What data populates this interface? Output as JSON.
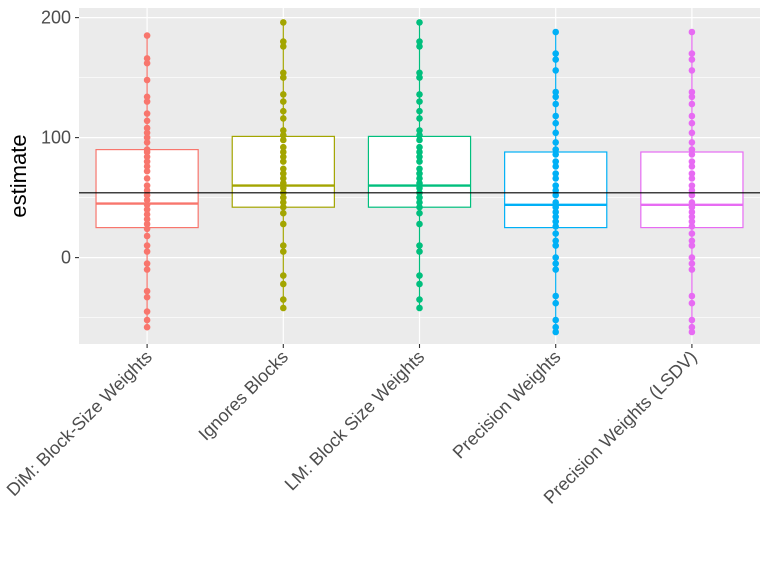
{
  "chart_data": {
    "type": "box",
    "title": "",
    "xlabel": "",
    "ylabel": "estimate",
    "ylim": [
      -72,
      208
    ],
    "y_ticks": [
      0,
      100,
      200
    ],
    "reference_line": 54,
    "grid": true,
    "legend": "none",
    "categories": [
      {
        "label": "DiM: Block-Size Weights",
        "color": "#F8766D",
        "box": {
          "q1": 25,
          "median": 45,
          "q3": 90,
          "min": -58,
          "max": 185
        },
        "points": [
          185,
          166,
          162,
          148,
          134,
          130,
          120,
          114,
          108,
          104,
          100,
          96,
          90,
          88,
          84,
          80,
          76,
          72,
          66,
          60,
          56,
          52,
          48,
          44,
          40,
          36,
          32,
          28,
          24,
          18,
          10,
          5,
          -5,
          -10,
          -28,
          -33,
          -45,
          -52,
          -58
        ]
      },
      {
        "label": "Ignores Blocks",
        "color": "#A3A500",
        "box": {
          "q1": 42,
          "median": 60,
          "q3": 101,
          "min": -42,
          "max": 196
        },
        "points": [
          196,
          180,
          176,
          154,
          150,
          136,
          130,
          122,
          116,
          106,
          102,
          98,
          92,
          88,
          84,
          80,
          74,
          70,
          66,
          62,
          58,
          54,
          50,
          46,
          42,
          37,
          28,
          10,
          5,
          -15,
          -22,
          -35,
          -42
        ]
      },
      {
        "label": "LM: Block Size Weights",
        "color": "#00BF7D",
        "box": {
          "q1": 42,
          "median": 60,
          "q3": 101,
          "min": -42,
          "max": 196
        },
        "points": [
          196,
          180,
          176,
          154,
          150,
          136,
          130,
          122,
          116,
          106,
          102,
          98,
          92,
          88,
          84,
          80,
          74,
          70,
          66,
          62,
          58,
          54,
          50,
          46,
          42,
          37,
          28,
          10,
          5,
          -15,
          -22,
          -35,
          -42
        ]
      },
      {
        "label": "Precision Weights",
        "color": "#00B0F6",
        "box": {
          "q1": 25,
          "median": 44,
          "q3": 88,
          "min": -62,
          "max": 188
        },
        "points": [
          188,
          170,
          165,
          156,
          138,
          134,
          128,
          118,
          112,
          104,
          96,
          90,
          86,
          80,
          76,
          70,
          66,
          60,
          56,
          52,
          46,
          42,
          38,
          34,
          30,
          26,
          20,
          14,
          10,
          0,
          -5,
          -10,
          -32,
          -38,
          -52,
          -58,
          -62
        ]
      },
      {
        "label": "Precision Weights (LSDV)",
        "color": "#E76BF3",
        "box": {
          "q1": 25,
          "median": 44,
          "q3": 88,
          "min": -62,
          "max": 188
        },
        "points": [
          188,
          170,
          165,
          156,
          138,
          134,
          128,
          118,
          112,
          104,
          96,
          90,
          86,
          80,
          76,
          70,
          66,
          60,
          56,
          52,
          46,
          42,
          38,
          34,
          30,
          26,
          20,
          14,
          10,
          0,
          -5,
          -10,
          -32,
          -38,
          -52,
          -58,
          -62
        ]
      }
    ]
  }
}
